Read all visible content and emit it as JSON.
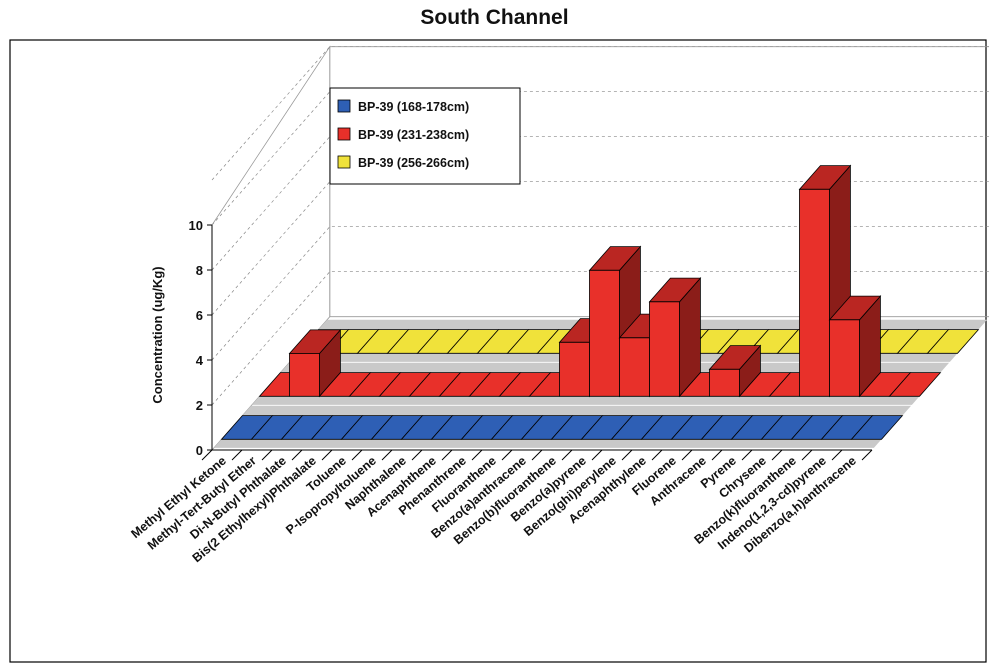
{
  "chart_data": {
    "type": "bar",
    "title": "South Channel",
    "ylabel": "Concentration (ug/Kg)",
    "xlabel": "",
    "ylim": [
      0,
      10
    ],
    "yticks": [
      "0",
      "2",
      "4",
      "6",
      "8",
      "10"
    ],
    "grid": true,
    "legend_position": "top-left",
    "categories": [
      "Methyl Ethyl Ketone",
      "Methyl-Tert-Butyl Ether",
      "Di-N-Butyl Phthalate",
      "Bis(2 Ethylhexyl)Phthalate",
      "Toluene",
      "P-Isopropyltoluene",
      "Naphthalene",
      "Acenaphthene",
      "Phenanthrene",
      "Fluoranthene",
      "Benzo(a)anthracene",
      "Benzo(b)fluoranthene",
      "Benzo(a)pyrene",
      "Benzo(ghi)perylene",
      "Acenaphthylene",
      "Fluorene",
      "Anthracene",
      "Pyrene",
      "Chrysene",
      "Benzo(k)fluoranthene",
      "Indeno(1,2,3-cd)pyrene",
      "Dibenzo(a,h)anthracene"
    ],
    "series": [
      {
        "name": "BP-39 (168-178cm)",
        "color": "#2e5fb5",
        "values": [
          0,
          0,
          0,
          0,
          0,
          0,
          0,
          0,
          0,
          0,
          0,
          0,
          0,
          0,
          0,
          0,
          0,
          0,
          0,
          0,
          0,
          0
        ]
      },
      {
        "name": "BP-39 (231-238cm)",
        "color": "#e8302a",
        "values": [
          0,
          1.9,
          0,
          0,
          0,
          0,
          0,
          0,
          0,
          0,
          2.4,
          5.6,
          2.6,
          4.2,
          0,
          1.2,
          0,
          0,
          9.2,
          3.4,
          0,
          0
        ]
      },
      {
        "name": "BP-39 (256-266cm)",
        "color": "#f0e23a",
        "values": [
          0,
          0,
          0,
          0,
          0,
          0,
          0,
          0,
          0,
          0,
          0,
          0,
          0,
          0,
          0,
          0,
          0,
          0,
          0,
          0,
          0,
          0
        ]
      }
    ]
  }
}
